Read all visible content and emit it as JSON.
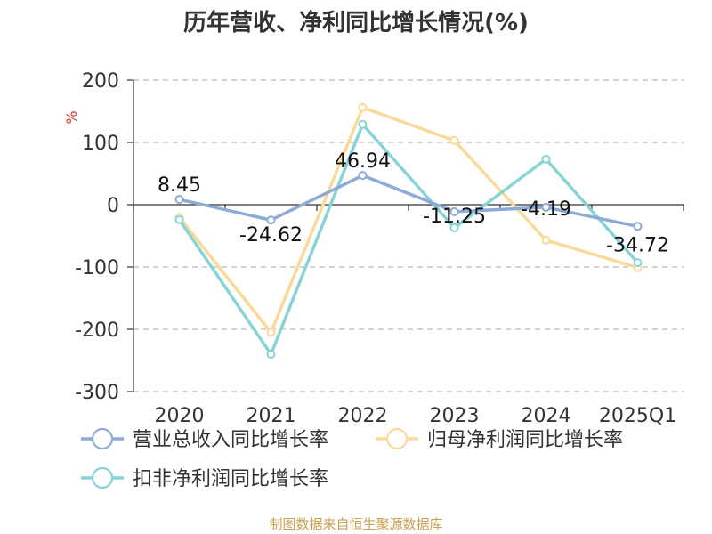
{
  "title": "历年营收、净利同比增长情况(%)",
  "source": "制图数据来自恒生聚源数据库",
  "chart_data": {
    "type": "line",
    "title": "历年营收、净利同比增长情况(%)",
    "ylabel": "%",
    "categories": [
      "2020",
      "2021",
      "2022",
      "2023",
      "2024",
      "2025Q1"
    ],
    "ylim": [
      -300,
      200
    ],
    "yticks": [
      200,
      100,
      0,
      -100,
      -200,
      -300
    ],
    "grid": true,
    "legend_position": "bottom",
    "series": [
      {
        "name": "营业总收入同比增长率",
        "values": [
          8.45,
          -24.62,
          46.94,
          -11.25,
          -4.19,
          -34.72
        ],
        "labels": [
          "8.45",
          "-24.62",
          "46.94",
          "-11.25",
          "-4.19",
          "-34.72"
        ],
        "color": "#8eaad6"
      },
      {
        "name": "归母净利润同比增长率",
        "values": [
          -20,
          -205,
          156,
          103,
          -57,
          -101
        ],
        "color": "#fad999"
      },
      {
        "name": "扣非净利润同比增长率",
        "values": [
          -24,
          -240,
          129,
          -37,
          73,
          -93
        ],
        "color": "#87d4d6"
      }
    ]
  }
}
